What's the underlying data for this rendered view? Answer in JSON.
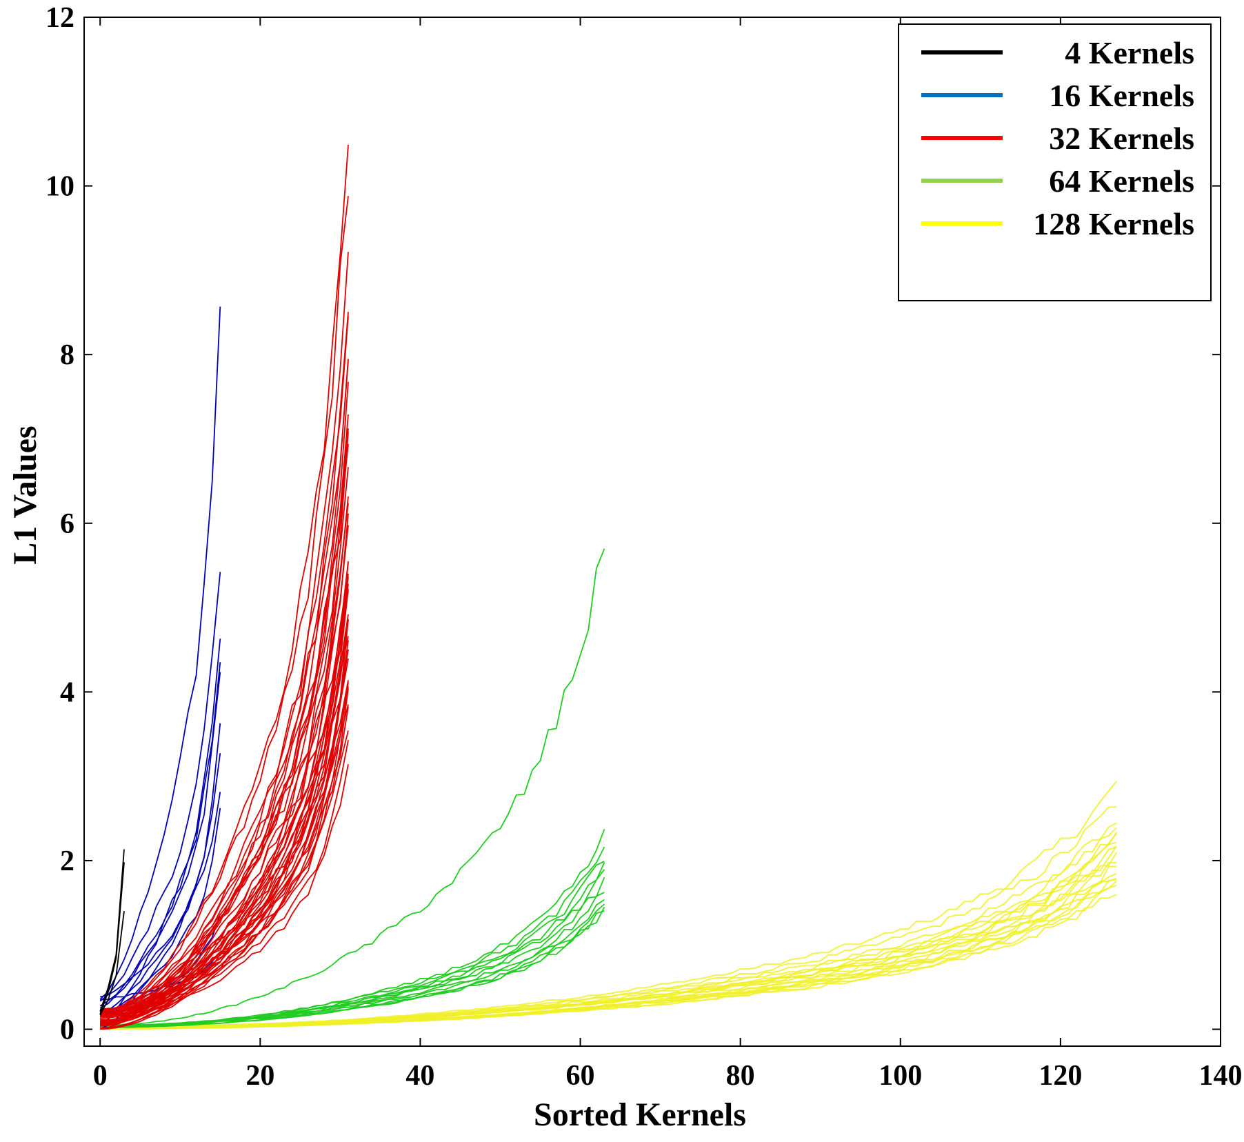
{
  "chart_data": {
    "type": "line",
    "title": "",
    "xlabel": "Sorted Kernels",
    "ylabel": "L1 Values",
    "xlim": [
      -2,
      140
    ],
    "ylim": [
      -0.2,
      12
    ],
    "x_ticks": [
      0,
      20,
      40,
      60,
      80,
      100,
      120,
      140
    ],
    "y_ticks": [
      0,
      2,
      4,
      6,
      8,
      10,
      12
    ],
    "grid": false,
    "legend_position": "top-right",
    "series": [
      {
        "name": "4 Kernels",
        "kernels": 4,
        "color": "#000000",
        "legend_color": "#000000",
        "line_count": 3,
        "final_values": [
          2.1,
          1.95,
          1.4
        ],
        "curvature": 1.3,
        "start_max": 0.5
      },
      {
        "name": "16 Kernels",
        "kernels": 16,
        "color": "#0000b4",
        "legend_color": "#0070c0",
        "line_count": 11,
        "final_values": [
          8.3,
          5.5,
          4.8,
          4.4,
          4.2,
          3.5,
          3.2,
          2.9,
          2.6,
          1.4,
          0.95
        ],
        "curvature": 1.4,
        "start_max": 0.45
      },
      {
        "name": "32 Kernels",
        "kernels": 32,
        "color": "#e00000",
        "legend_color": "#ff0000",
        "line_count": 40,
        "final_values": [
          10.85,
          10.2,
          9.1,
          8.7,
          8.3,
          8.0,
          7.8,
          7.5,
          7.4,
          7.2,
          7.0,
          6.8,
          6.6,
          6.4,
          6.2,
          6.0,
          5.9,
          5.7,
          5.6,
          5.5,
          5.4,
          5.3,
          5.2,
          5.1,
          5.0,
          4.9,
          4.8,
          4.7,
          4.6,
          4.5,
          4.4,
          4.3,
          4.2,
          4.1,
          4.0,
          3.9,
          3.8,
          3.6,
          3.3,
          3.1
        ],
        "curvature": 1.8,
        "start_max": 0.25
      },
      {
        "name": "64 Kernels",
        "kernels": 64,
        "color": "#22cc22",
        "legend_color": "#92d050",
        "line_count": 12,
        "final_values": [
          5.7,
          2.3,
          2.15,
          2.05,
          1.95,
          1.85,
          1.75,
          1.65,
          1.55,
          1.5,
          1.45,
          1.4
        ],
        "curvature": 2.0,
        "start_max": 0.05
      },
      {
        "name": "128 Kernels",
        "kernels": 128,
        "color": "#f0f028",
        "legend_color": "#ffff00",
        "line_count": 18,
        "final_values": [
          2.9,
          2.7,
          2.5,
          2.4,
          2.3,
          2.25,
          2.2,
          2.15,
          2.1,
          2.05,
          2.0,
          1.95,
          1.9,
          1.85,
          1.8,
          1.75,
          1.7,
          1.65
        ],
        "curvature": 2.1,
        "start_max": 0.04
      }
    ]
  }
}
